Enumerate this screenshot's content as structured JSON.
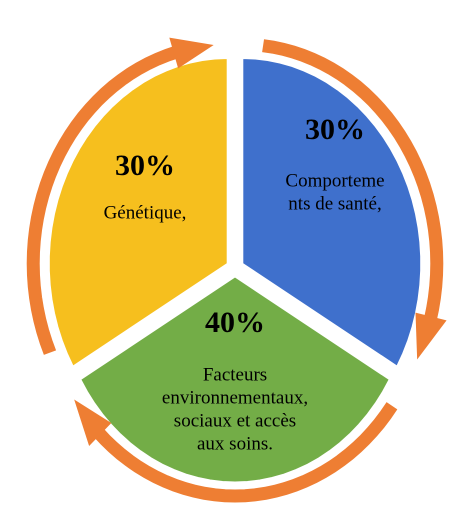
{
  "segments": [
    {
      "value_label": "30%",
      "lines": [
        "Comporteme",
        "nts de santé,"
      ],
      "color": "#3f70cc"
    },
    {
      "value_label": "40%",
      "lines": [
        "Facteurs",
        "environnementaux,",
        "sociaux et accès",
        "aux soins."
      ],
      "color": "#73ad47"
    },
    {
      "value_label": "30%",
      "lines": [
        "Génétique,"
      ],
      "color": "#f6bf1e"
    }
  ],
  "arrow_color": "#ee7e33"
}
